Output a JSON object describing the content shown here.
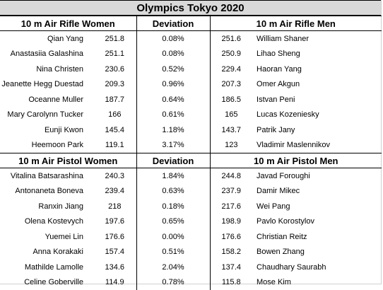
{
  "title": "Olympics Tokyo 2020",
  "sections": [
    {
      "left_header": "10 m Air Rifle Women",
      "mid_header": "Deviation",
      "right_header": "10 m Air Rifle Men",
      "rows": [
        {
          "w_name": "Qian Yang",
          "w_score": "251.8",
          "dev": "0.08%",
          "m_score": "251.6",
          "m_name": "William Shaner"
        },
        {
          "w_name": "Anastasiia Galashina",
          "w_score": "251.1",
          "dev": "0.08%",
          "m_score": "250.9",
          "m_name": "Lihao Sheng"
        },
        {
          "w_name": "Nina Christen",
          "w_score": "230.6",
          "dev": "0.52%",
          "m_score": "229.4",
          "m_name": "Haoran Yang"
        },
        {
          "w_name": "Jeanette Hegg Duestad",
          "w_score": "209.3",
          "dev": "0.96%",
          "m_score": "207.3",
          "m_name": "Omer Akgun"
        },
        {
          "w_name": "Oceanne Muller",
          "w_score": "187.7",
          "dev": "0.64%",
          "m_score": "186.5",
          "m_name": "Istvan Peni"
        },
        {
          "w_name": "Mary Carolynn Tucker",
          "w_score": "166",
          "dev": "0.61%",
          "m_score": "165",
          "m_name": "Lucas Kozeniesky"
        },
        {
          "w_name": "Eunji Kwon",
          "w_score": "145.4",
          "dev": "1.18%",
          "m_score": "143.7",
          "m_name": "Patrik Jany"
        },
        {
          "w_name": "Heemoon Park",
          "w_score": "119.1",
          "dev": "3.17%",
          "m_score": "123",
          "m_name": "Vladimir Maslennikov"
        }
      ]
    },
    {
      "left_header": "10 m Air Pistol Women",
      "mid_header": "Deviation",
      "right_header": "10 m Air Pistol Men",
      "rows": [
        {
          "w_name": "Vitalina Batsarashina",
          "w_score": "240.3",
          "dev": "1.84%",
          "m_score": "244.8",
          "m_name": "Javad Foroughi"
        },
        {
          "w_name": "Antonaneta Boneva",
          "w_score": "239.4",
          "dev": "0.63%",
          "m_score": "237.9",
          "m_name": "Damir Mikec"
        },
        {
          "w_name": "Ranxin Jiang",
          "w_score": "218",
          "dev": "0.18%",
          "m_score": "217.6",
          "m_name": "Wei Pang"
        },
        {
          "w_name": "Olena Kostevych",
          "w_score": "197.6",
          "dev": "0.65%",
          "m_score": "198.9",
          "m_name": "Pavlo Korostylov"
        },
        {
          "w_name": "Yuemei Lin",
          "w_score": "176.6",
          "dev": "0.00%",
          "m_score": "176.6",
          "m_name": "Christian Reitz"
        },
        {
          "w_name": "Anna Korakaki",
          "w_score": "157.4",
          "dev": "0.51%",
          "m_score": "158.2",
          "m_name": "Bowen Zhang"
        },
        {
          "w_name": "Mathilde Lamolle",
          "w_score": "134.6",
          "dev": "2.04%",
          "m_score": "137.4",
          "m_name": "Chaudhary Saurabh"
        },
        {
          "w_name": "Celine Goberville",
          "w_score": "114.9",
          "dev": "0.78%",
          "m_score": "115.8",
          "m_name": "Mose Kim"
        }
      ]
    }
  ],
  "colors": {
    "title_bg": "#d9d9d9",
    "grid": "#000000",
    "text": "#000000"
  }
}
